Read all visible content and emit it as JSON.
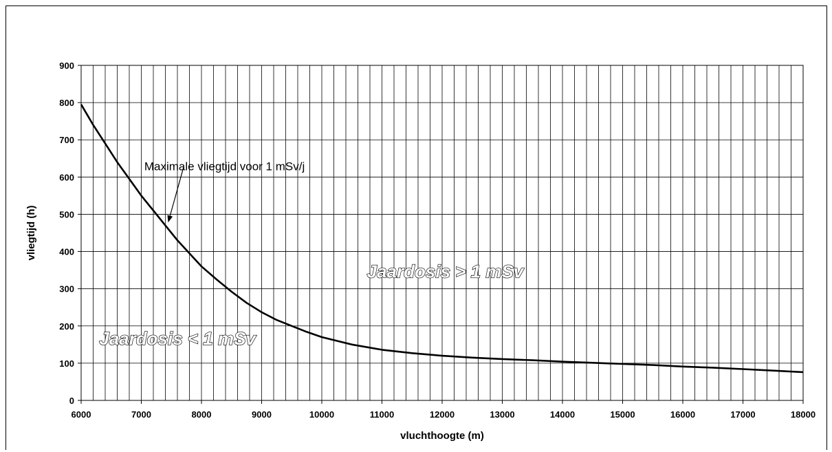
{
  "chart_data": {
    "type": "line",
    "title": "",
    "xlabel": "vluchthoogte (m)",
    "ylabel": "vliegtijd (h)",
    "xlim": [
      6000,
      18000
    ],
    "ylim": [
      0,
      900
    ],
    "x_ticks": [
      6000,
      7000,
      8000,
      9000,
      10000,
      11000,
      12000,
      13000,
      14000,
      15000,
      16000,
      17000,
      18000
    ],
    "y_ticks": [
      0,
      100,
      200,
      300,
      400,
      500,
      600,
      700,
      800,
      900
    ],
    "x_minor_step": 200,
    "y_grid_step": 100,
    "grid": true,
    "line_color": "#000000",
    "series": [
      {
        "name": "",
        "x": [
          6000,
          6200,
          6400,
          6600,
          6800,
          7000,
          7200,
          7400,
          7600,
          7800,
          8000,
          8250,
          8500,
          8750,
          9000,
          9250,
          9500,
          9750,
          10000,
          10500,
          11000,
          11500,
          12000,
          12500,
          13000,
          13500,
          14000,
          14500,
          15000,
          15500,
          16000,
          16500,
          17000,
          17500,
          18000
        ],
        "y": [
          795,
          740,
          690,
          640,
          595,
          550,
          510,
          470,
          430,
          395,
          360,
          325,
          292,
          262,
          237,
          216,
          200,
          184,
          170,
          150,
          136,
          127,
          120,
          115,
          111,
          108,
          104,
          101,
          98,
          95,
          91,
          88,
          84,
          80,
          76
        ]
      }
    ],
    "annotations": {
      "curve_label": "Maximale vliegtijd voor 1 mSv/j",
      "arrow_from": [
        7700,
        625
      ],
      "arrow_to": [
        7450,
        480
      ],
      "label_at": [
        7050,
        618
      ],
      "region_above": "Jaardosis > 1 mSv",
      "region_above_at": [
        10750,
        330
      ],
      "region_below": "Jaardosis < 1 mSv",
      "region_below_at": [
        6300,
        150
      ]
    }
  }
}
